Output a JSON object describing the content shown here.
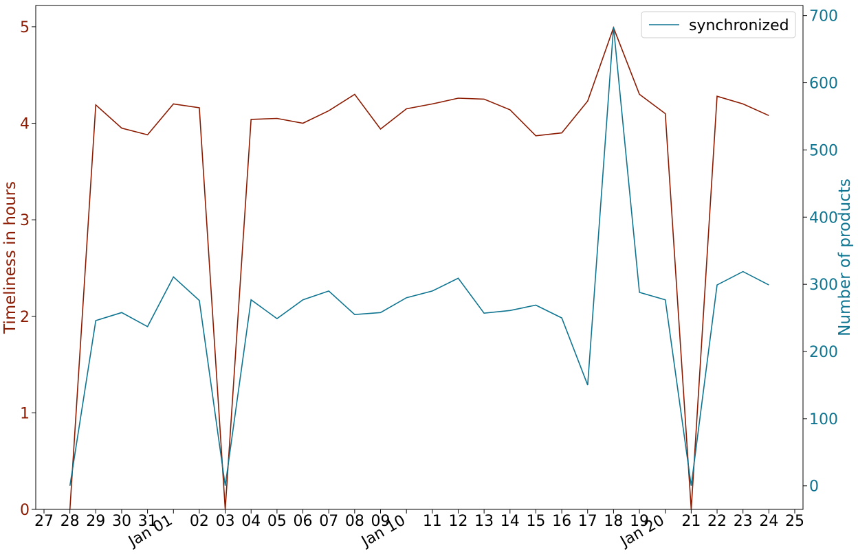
{
  "chart_data": {
    "type": "line",
    "colors": {
      "left_axis": "#8b1a00",
      "right_axis": "#0e7490"
    },
    "x_ticks": [
      {
        "date": "2020-12-27",
        "label": "27"
      },
      {
        "date": "2020-12-28",
        "label": "28"
      },
      {
        "date": "2020-12-29",
        "label": "29"
      },
      {
        "date": "2020-12-30",
        "label": "30"
      },
      {
        "date": "2020-12-31",
        "label": "31"
      },
      {
        "date": "2021-01-01",
        "label": "Jan 01",
        "rotated": true
      },
      {
        "date": "2021-01-02",
        "label": "02"
      },
      {
        "date": "2021-01-03",
        "label": "03"
      },
      {
        "date": "2021-01-04",
        "label": "04"
      },
      {
        "date": "2021-01-05",
        "label": "05"
      },
      {
        "date": "2021-01-06",
        "label": "06"
      },
      {
        "date": "2021-01-07",
        "label": "07"
      },
      {
        "date": "2021-01-08",
        "label": "08"
      },
      {
        "date": "2021-01-09",
        "label": "09"
      },
      {
        "date": "2021-01-10",
        "label": "Jan 10",
        "rotated": true
      },
      {
        "date": "2021-01-11",
        "label": "11"
      },
      {
        "date": "2021-01-12",
        "label": "12"
      },
      {
        "date": "2021-01-13",
        "label": "13"
      },
      {
        "date": "2021-01-14",
        "label": "14"
      },
      {
        "date": "2021-01-15",
        "label": "15"
      },
      {
        "date": "2021-01-16",
        "label": "16"
      },
      {
        "date": "2021-01-17",
        "label": "17"
      },
      {
        "date": "2021-01-18",
        "label": "18"
      },
      {
        "date": "2021-01-19",
        "label": "19"
      },
      {
        "date": "2021-01-20",
        "label": "Jan 20",
        "rotated": true
      },
      {
        "date": "2021-01-21",
        "label": "21"
      },
      {
        "date": "2021-01-22",
        "label": "22"
      },
      {
        "date": "2021-01-23",
        "label": "23"
      },
      {
        "date": "2021-01-24",
        "label": "24"
      },
      {
        "date": "2021-01-25",
        "label": "25"
      }
    ],
    "xlim": [
      "2020-12-27",
      "2021-01-25"
    ],
    "left_axis": {
      "label": "Timeliness in hours",
      "ylim": [
        0,
        5.22
      ],
      "ticks": [
        0,
        1,
        2,
        3,
        4,
        5
      ]
    },
    "right_axis": {
      "label": "Number of products",
      "ylim": [
        -35,
        715
      ],
      "ticks": [
        0,
        100,
        200,
        300,
        400,
        500,
        600,
        700
      ]
    },
    "legend": {
      "position": "top-right",
      "entries": [
        "synchronized"
      ]
    },
    "grid": false,
    "series": [
      {
        "axis": "left",
        "color": "#8b1a00",
        "points": [
          [
            "2020-12-28",
            0.0
          ],
          [
            "2020-12-29",
            4.19
          ],
          [
            "2020-12-30",
            3.95
          ],
          [
            "2020-12-31",
            3.88
          ],
          [
            "2021-01-01",
            4.2
          ],
          [
            "2021-01-02",
            4.16
          ],
          [
            "2021-01-03",
            0.0
          ],
          [
            "2021-01-04",
            4.04
          ],
          [
            "2021-01-05",
            4.05
          ],
          [
            "2021-01-06",
            4.0
          ],
          [
            "2021-01-07",
            4.13
          ],
          [
            "2021-01-08",
            4.3
          ],
          [
            "2021-01-09",
            3.94
          ],
          [
            "2021-01-10",
            4.15
          ],
          [
            "2021-01-11",
            4.2
          ],
          [
            "2021-01-12",
            4.26
          ],
          [
            "2021-01-13",
            4.25
          ],
          [
            "2021-01-14",
            4.14
          ],
          [
            "2021-01-15",
            3.87
          ],
          [
            "2021-01-16",
            3.9
          ],
          [
            "2021-01-17",
            4.23
          ],
          [
            "2021-01-18",
            4.99
          ],
          [
            "2021-01-19",
            4.3
          ],
          [
            "2021-01-20",
            4.1
          ],
          [
            "2021-01-21",
            0.0
          ],
          [
            "2021-01-22",
            4.28
          ],
          [
            "2021-01-23",
            4.2
          ],
          [
            "2021-01-24",
            4.08
          ]
        ]
      },
      {
        "name": "synchronized",
        "axis": "right",
        "color": "#0e7490",
        "points": [
          [
            "2020-12-28",
            0
          ],
          [
            "2020-12-29",
            246
          ],
          [
            "2020-12-30",
            258
          ],
          [
            "2020-12-31",
            237
          ],
          [
            "2021-01-01",
            311
          ],
          [
            "2021-01-02",
            276
          ],
          [
            "2021-01-03",
            0
          ],
          [
            "2021-01-04",
            277
          ],
          [
            "2021-01-05",
            249
          ],
          [
            "2021-01-06",
            277
          ],
          [
            "2021-01-07",
            290
          ],
          [
            "2021-01-08",
            255
          ],
          [
            "2021-01-09",
            258
          ],
          [
            "2021-01-10",
            280
          ],
          [
            "2021-01-11",
            290
          ],
          [
            "2021-01-12",
            309
          ],
          [
            "2021-01-13",
            257
          ],
          [
            "2021-01-14",
            261
          ],
          [
            "2021-01-15",
            269
          ],
          [
            "2021-01-16",
            250
          ],
          [
            "2021-01-17",
            150
          ],
          [
            "2021-01-18",
            683
          ],
          [
            "2021-01-19",
            288
          ],
          [
            "2021-01-20",
            277
          ],
          [
            "2021-01-21",
            0
          ],
          [
            "2021-01-22",
            299
          ],
          [
            "2021-01-23",
            319
          ],
          [
            "2021-01-24",
            299
          ]
        ]
      }
    ]
  }
}
